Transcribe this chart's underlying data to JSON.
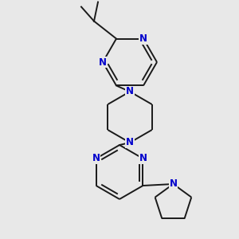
{
  "bg_color": "#e8e8e8",
  "bond_color": "#1a1a1a",
  "N_color": "#0000cc",
  "line_width": 1.4,
  "font_size": 8.5,
  "fig_size": [
    3.0,
    3.0
  ],
  "dpi": 100,
  "xlim": [
    0,
    300
  ],
  "ylim": [
    0,
    300
  ]
}
